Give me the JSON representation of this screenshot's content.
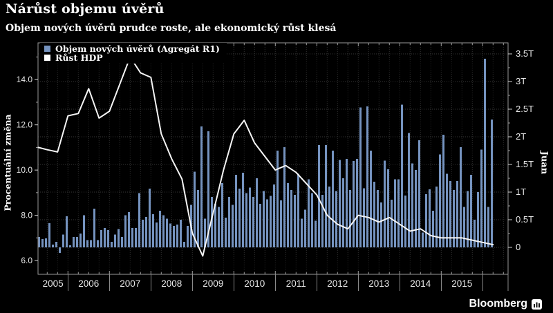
{
  "header": {
    "title": "Nárůst objemu úvěrů",
    "subtitle": "Objem nových úvěrů prudce roste, ale ekonomický růst klesá"
  },
  "legend": {
    "items": [
      {
        "label": "Objem nových úvěrů (Agregát R1)",
        "color": "#7593bf"
      },
      {
        "label": "Růst HDP",
        "color": "#ffffff"
      }
    ]
  },
  "branding": {
    "logo_text": "Bloomberg",
    "logo_icon": "bar-chart-terminal-icon"
  },
  "chart_data": {
    "type": "bar",
    "subtype": "bar+line combo, dual axis",
    "title": "Nárůst objemu úvěrů",
    "left_axis": {
      "label": "Procentuální změna",
      "tick_labels": [
        "6.0",
        "8.0",
        "10.0",
        "12.0",
        "14.0"
      ],
      "tick_values": [
        6,
        8,
        10,
        12,
        14
      ],
      "minor_tick_values": [
        7,
        9,
        11,
        13,
        15
      ]
    },
    "right_axis": {
      "label": "Juan",
      "tick_labels": [
        "0",
        "0.5T",
        "1T",
        "1.5T",
        "2T",
        "2.5T",
        "3T",
        "3.5T"
      ],
      "tick_values": [
        0,
        0.5,
        1,
        1.5,
        2,
        2.5,
        3,
        3.5
      ]
    },
    "x_axis": {
      "year_labels": [
        "2005",
        "2006",
        "2007",
        "2008",
        "2009",
        "2010",
        "2011",
        "2012",
        "2013",
        "2014",
        "2015"
      ],
      "grid": "quarterly dotted"
    },
    "series": [
      {
        "name": "Objem nových úvěrů (Agregát R1)",
        "type": "bar",
        "axis": "right",
        "unit": "trillion yuan",
        "frequency": "monthly",
        "start": "2005-04",
        "end": "2016-03",
        "values": [
          0.19,
          0.15,
          0.16,
          0.44,
          0.05,
          0.1,
          -0.1,
          0.23,
          0.56,
          0.04,
          0.19,
          0.19,
          0.25,
          0.58,
          0.13,
          0.13,
          0.7,
          0.13,
          0.31,
          0.35,
          0.31,
          0.1,
          0.23,
          0.33,
          0.19,
          0.58,
          0.64,
          0.35,
          0.35,
          0.98,
          0.5,
          0.55,
          1.06,
          0.6,
          0.45,
          0.66,
          0.58,
          0.52,
          0.43,
          0.39,
          0.41,
          0.5,
          0.1,
          0.39,
          0.77,
          1.37,
          1.04,
          2.19,
          0.52,
          2.1,
          0.91,
          0.79,
          0.73,
          1.16,
          0.54,
          0.91,
          0.77,
          1.31,
          1.06,
          1.35,
          0.98,
          1.08,
          0.91,
          1.25,
          0.79,
          1.02,
          0.87,
          0.93,
          1.14,
          1.75,
          0.85,
          1.81,
          1.16,
          1.04,
          0.95,
          1.33,
          0.52,
          0.68,
          1.23,
          0.98,
          0.48,
          1.85,
          0.95,
          1.85,
          1.1,
          1.75,
          1.02,
          1.58,
          1.25,
          1.6,
          1.04,
          1.56,
          1.6,
          2.53,
          1.07,
          2.55,
          1.75,
          1.19,
          1.04,
          0.81,
          1.57,
          1.41,
          0.86,
          1.23,
          1.23,
          2.58,
          0.94,
          2.07,
          1.52,
          1.4,
          1.94,
          0.27,
          0.96,
          1.05,
          0.66,
          1.1,
          1.68,
          2.04,
          1.33,
          1.2,
          1.04,
          1.2,
          1.81,
          0.73,
          1.02,
          1.31,
          0.5,
          1.0,
          1.77,
          3.41,
          0.73,
          2.31
        ]
      },
      {
        "name": "Růst HDP",
        "type": "line",
        "axis": "left",
        "unit": "%",
        "frequency": "quarterly",
        "start": "2005-Q1",
        "end": "2016-Q1",
        "values": [
          11.0,
          10.9,
          10.8,
          12.4,
          12.5,
          13.6,
          12.3,
          12.6,
          13.8,
          15.0,
          14.3,
          14.1,
          11.6,
          10.5,
          9.6,
          7.2,
          6.2,
          8.1,
          10.0,
          11.6,
          12.2,
          11.2,
          10.6,
          10.0,
          10.2,
          9.9,
          9.4,
          8.9,
          8.0,
          7.6,
          7.4,
          8.0,
          7.9,
          7.7,
          7.9,
          7.6,
          7.3,
          7.4,
          7.1,
          7.0,
          7.0,
          7.0,
          6.9,
          6.8,
          6.7
        ]
      }
    ],
    "colors": {
      "background": "#000000",
      "bar": "#7593bf",
      "line": "#f5f5f5",
      "grid": "#383838",
      "axis": "#9a9a9a",
      "tick_text": "#e8e8e8"
    }
  }
}
